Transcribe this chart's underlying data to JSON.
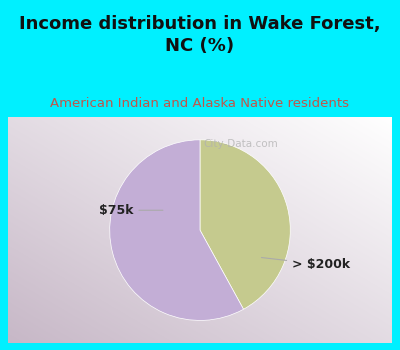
{
  "title": "Income distribution in Wake Forest,\nNC (%)",
  "subtitle": "American Indian and Alaska Native residents",
  "slices": [
    42,
    58
  ],
  "labels": [
    "$75k",
    "> $200k"
  ],
  "colors": [
    "#c5ca8e",
    "#c3aed6"
  ],
  "title_fontsize": 13,
  "subtitle_fontsize": 9.5,
  "title_color": "#111111",
  "subtitle_color": "#c0564a",
  "header_bg": "#00f0ff",
  "watermark": "City-Data.com",
  "start_angle": 90,
  "border_color": "#00f0ff",
  "border_width": 8
}
